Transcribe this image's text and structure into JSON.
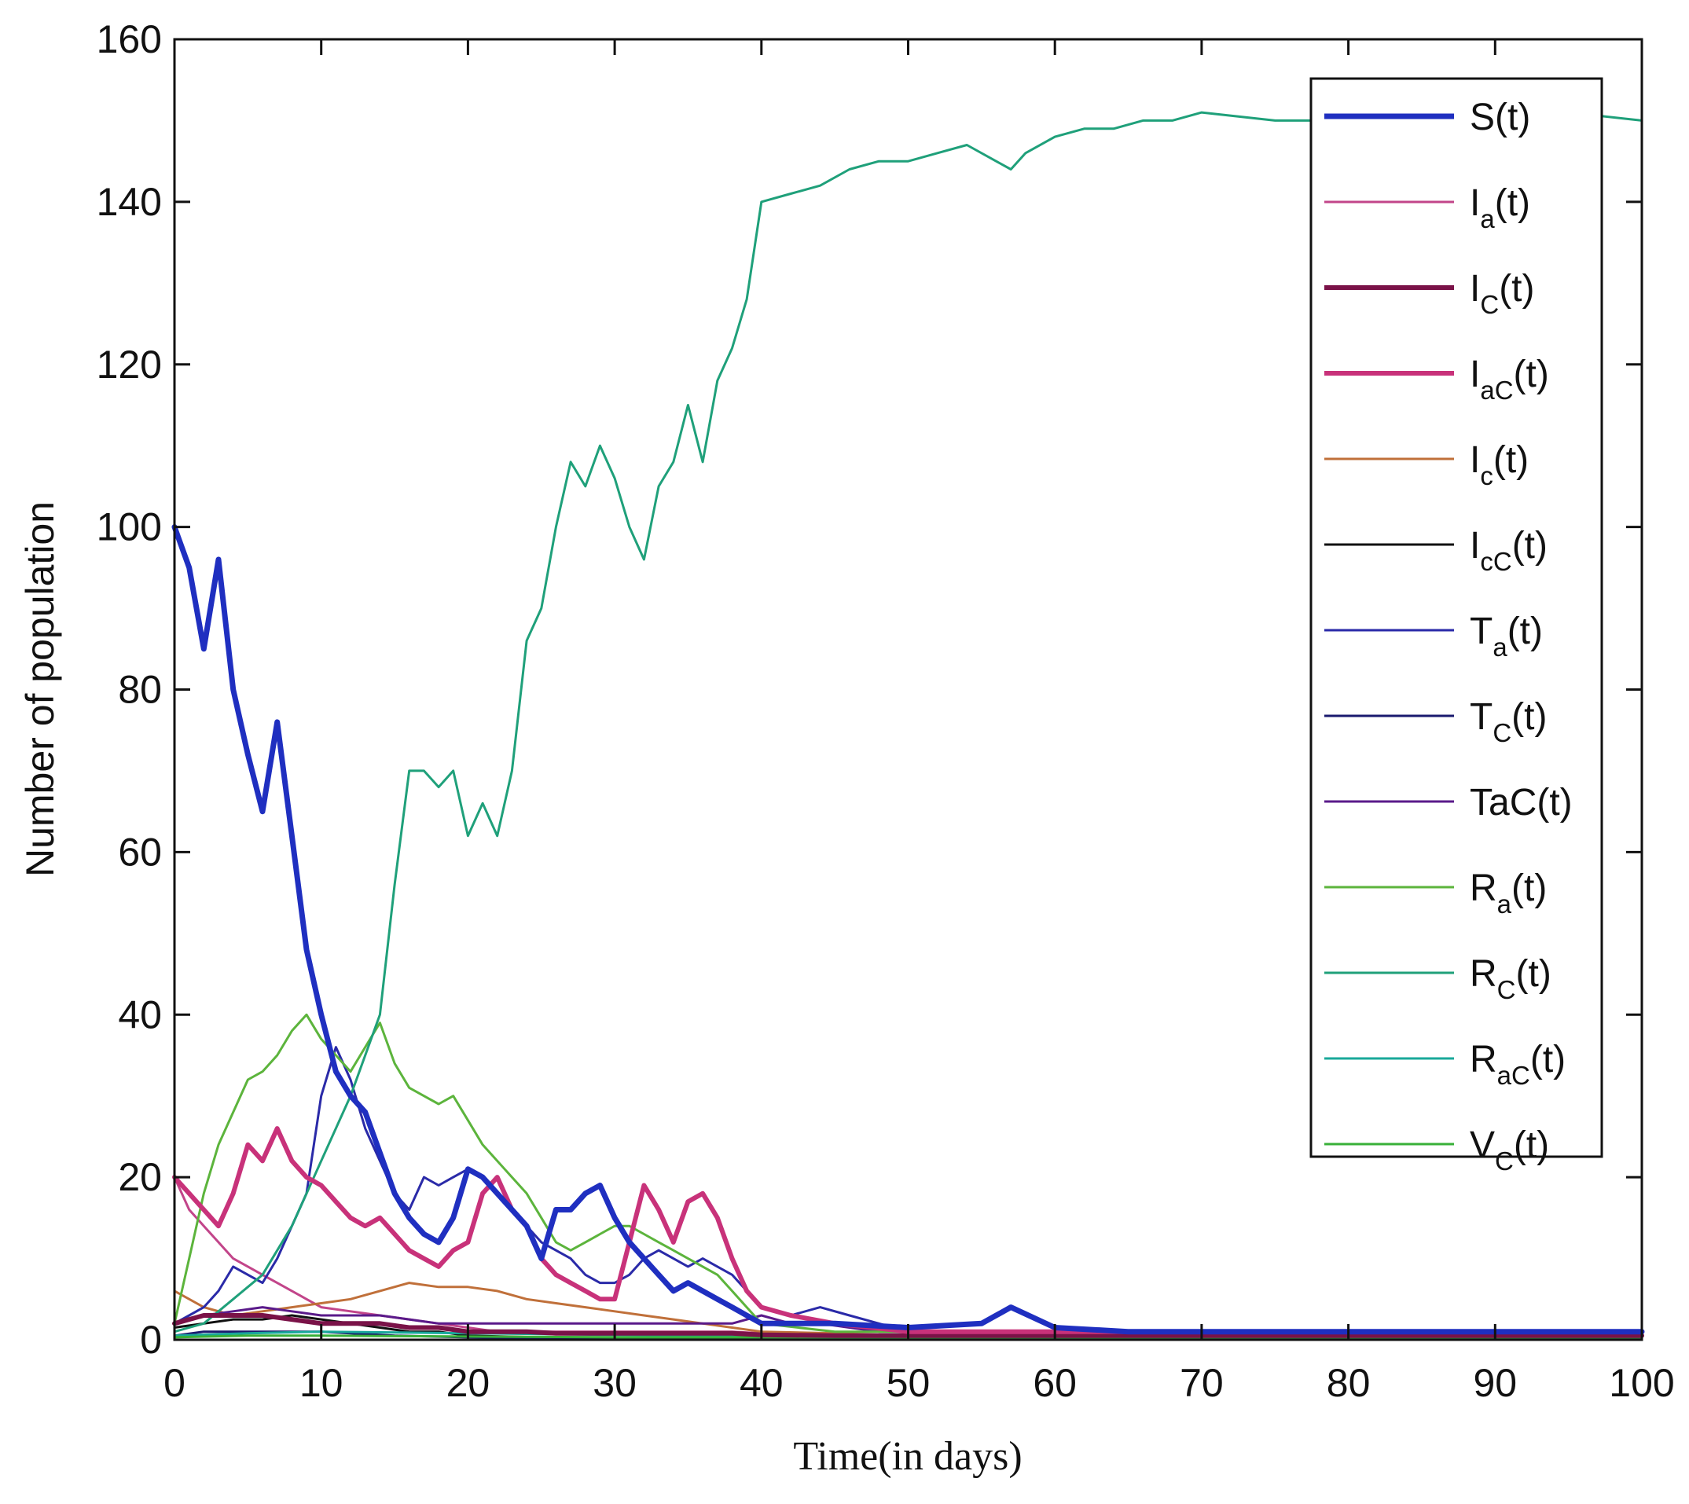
{
  "chart_data": {
    "type": "line",
    "title": "",
    "xlabel": "Time(in days)",
    "ylabel": "Number of population",
    "xlim": [
      0,
      100
    ],
    "ylim": [
      0,
      160
    ],
    "xticks": [
      0,
      10,
      20,
      30,
      40,
      50,
      60,
      70,
      80,
      90,
      100
    ],
    "yticks": [
      0,
      20,
      40,
      60,
      80,
      100,
      120,
      140,
      160
    ],
    "legend_position": "top-right",
    "grid": false,
    "series": [
      {
        "name": "S(t)",
        "label_main": "S(t)",
        "label_sub": "",
        "label_tail": "",
        "color": "#1f2fc0",
        "width": 7,
        "x": [
          0,
          1,
          2,
          3,
          4,
          5,
          6,
          7,
          8,
          9,
          10,
          11,
          12,
          13,
          14,
          15,
          16,
          17,
          18,
          19,
          20,
          21,
          22,
          23,
          24,
          25,
          26,
          27,
          28,
          29,
          30,
          31,
          32,
          33,
          34,
          35,
          36,
          37,
          38,
          39,
          40,
          45,
          50,
          55,
          57,
          60,
          65,
          70,
          80,
          90,
          100
        ],
        "y": [
          100,
          95,
          85,
          96,
          80,
          72,
          65,
          76,
          62,
          48,
          40,
          33,
          30,
          28,
          23,
          18,
          15,
          13,
          12,
          15,
          21,
          20,
          18,
          16,
          14,
          10,
          16,
          16,
          18,
          19,
          15,
          12,
          10,
          8,
          6,
          7,
          6,
          5,
          4,
          3,
          2,
          2,
          1.5,
          2,
          4,
          1.5,
          1,
          1,
          1,
          1,
          1
        ]
      },
      {
        "name": "Ia(t)",
        "label_main": "I",
        "label_sub": "a",
        "label_tail": "(t)",
        "color": "#c2458a",
        "width": 3,
        "x": [
          0,
          1,
          2,
          3,
          4,
          5,
          6,
          7,
          8,
          9,
          10,
          12,
          14,
          16,
          18,
          20,
          22,
          24,
          26,
          28,
          30,
          32,
          34,
          36,
          38,
          40,
          45,
          50,
          60,
          70,
          80,
          90,
          100
        ],
        "y": [
          20,
          16,
          14,
          12,
          10,
          9,
          8,
          7,
          6,
          5,
          4,
          3.5,
          3,
          2.5,
          2,
          1.5,
          1,
          1,
          1,
          1,
          1,
          1,
          1,
          1,
          1,
          0.8,
          0.5,
          0.5,
          0.5,
          0.5,
          0.5,
          0.5,
          0.5
        ]
      },
      {
        "name": "IC(t)",
        "label_main": "I",
        "label_sub": "C",
        "label_tail": "(t)",
        "color": "#7a1248",
        "width": 6,
        "x": [
          0,
          2,
          4,
          6,
          8,
          10,
          12,
          14,
          16,
          18,
          20,
          22,
          24,
          26,
          28,
          30,
          32,
          34,
          36,
          38,
          40,
          45,
          50,
          60,
          70,
          80,
          90,
          100
        ],
        "y": [
          2,
          3,
          3,
          3,
          2.5,
          2,
          2,
          2,
          1.5,
          1.5,
          1,
          1,
          1,
          0.8,
          0.8,
          0.8,
          0.8,
          0.8,
          0.8,
          0.8,
          0.6,
          0.5,
          0.5,
          0.5,
          0.5,
          0.5,
          0.5,
          0.5
        ]
      },
      {
        "name": "IaC(t)",
        "label_main": "I",
        "label_sub": "aC",
        "label_tail": "(t)",
        "color": "#c8327a",
        "width": 6,
        "x": [
          0,
          1,
          2,
          3,
          4,
          5,
          6,
          7,
          8,
          9,
          10,
          11,
          12,
          13,
          14,
          15,
          16,
          17,
          18,
          19,
          20,
          21,
          22,
          23,
          24,
          25,
          26,
          27,
          28,
          29,
          30,
          31,
          32,
          33,
          34,
          35,
          36,
          37,
          38,
          39,
          40,
          42,
          45,
          50,
          60,
          70,
          80,
          90,
          100
        ],
        "y": [
          20,
          18,
          16,
          14,
          18,
          24,
          22,
          26,
          22,
          20,
          19,
          17,
          15,
          14,
          15,
          13,
          11,
          10,
          9,
          11,
          12,
          18,
          20,
          16,
          14,
          10,
          8,
          7,
          6,
          5,
          5,
          12,
          19,
          16,
          12,
          17,
          18,
          15,
          10,
          6,
          4,
          3,
          2,
          1,
          1,
          1,
          1,
          1,
          1
        ]
      },
      {
        "name": "Ic(t)",
        "label_main": "I",
        "label_sub": "c",
        "label_tail": "(t)",
        "color": "#c0703a",
        "width": 3,
        "x": [
          0,
          2,
          4,
          6,
          8,
          10,
          12,
          14,
          16,
          18,
          20,
          22,
          24,
          26,
          28,
          30,
          32,
          34,
          36,
          38,
          40,
          45,
          50,
          60,
          70,
          80,
          90,
          100
        ],
        "y": [
          6,
          4,
          3,
          3.5,
          4,
          4.5,
          5,
          6,
          7,
          6.5,
          6.5,
          6,
          5,
          4.5,
          4,
          3.5,
          3,
          2.5,
          2,
          1.5,
          1,
          0.8,
          0.5,
          0.5,
          0.5,
          0.5,
          0.5,
          0.5
        ]
      },
      {
        "name": "IcC(t)",
        "label_main": "I",
        "label_sub": "cC",
        "label_tail": "(t)",
        "color": "#111111",
        "width": 3,
        "x": [
          0,
          2,
          4,
          6,
          8,
          10,
          12,
          14,
          16,
          18,
          20,
          25,
          30,
          40,
          50,
          60,
          70,
          80,
          90,
          100
        ],
        "y": [
          1.5,
          2,
          2.5,
          2.5,
          3,
          2.5,
          2,
          1.5,
          1,
          1,
          0.5,
          0.3,
          0.3,
          0.3,
          0.3,
          0.3,
          0.3,
          0.3,
          0.3,
          0.3
        ]
      },
      {
        "name": "Ta(t)",
        "label_main": "T",
        "label_sub": "a",
        "label_tail": "(t)",
        "color": "#2a2aa8",
        "width": 3,
        "x": [
          0,
          1,
          2,
          3,
          4,
          5,
          6,
          7,
          8,
          9,
          10,
          11,
          12,
          13,
          14,
          15,
          16,
          17,
          18,
          19,
          20,
          21,
          22,
          23,
          24,
          25,
          26,
          27,
          28,
          29,
          30,
          31,
          32,
          33,
          34,
          35,
          36,
          37,
          38,
          39,
          40,
          42,
          44,
          46,
          48,
          50,
          60,
          70,
          80,
          90,
          100
        ],
        "y": [
          2,
          3,
          4,
          6,
          9,
          8,
          7,
          10,
          14,
          18,
          30,
          36,
          32,
          26,
          22,
          18,
          16,
          20,
          19,
          20,
          21,
          20,
          18,
          16,
          14,
          12,
          11,
          10,
          8,
          7,
          7,
          8,
          10,
          11,
          10,
          9,
          10,
          9,
          8,
          6,
          4,
          3,
          4,
          3,
          2,
          1,
          1,
          0.5,
          0.5,
          0.5,
          0.5
        ]
      },
      {
        "name": "TC(t)",
        "label_main": "T",
        "label_sub": "C",
        "label_tail": "(t)",
        "color": "#1a1a6e",
        "width": 3,
        "x": [
          0,
          2,
          4,
          6,
          8,
          10,
          15,
          20,
          30,
          40,
          50,
          60,
          70,
          80,
          90,
          100
        ],
        "y": [
          0.5,
          1,
          1,
          1,
          1,
          1,
          0.5,
          0.3,
          0.2,
          0.2,
          0.2,
          0.2,
          0.2,
          0.2,
          0.2,
          0.2
        ]
      },
      {
        "name": "TaC(t)",
        "label_main": "TaC(t)",
        "label_sub": "",
        "label_tail": "",
        "color": "#5a1a8a",
        "width": 3,
        "x": [
          0,
          2,
          4,
          6,
          8,
          10,
          12,
          14,
          16,
          18,
          20,
          22,
          24,
          26,
          28,
          30,
          32,
          34,
          36,
          38,
          40,
          42,
          44,
          46,
          48,
          50,
          60,
          70,
          80,
          90,
          100
        ],
        "y": [
          2,
          3,
          3.5,
          4,
          3.5,
          3,
          3,
          3,
          2.5,
          2,
          2,
          2,
          2,
          2,
          2,
          2,
          2,
          2,
          2,
          2,
          3,
          2,
          2,
          1.5,
          1,
          1,
          1,
          0.8,
          0.8,
          0.8,
          0.8
        ]
      },
      {
        "name": "Ra(t)",
        "label_main": "R",
        "label_sub": "a",
        "label_tail": "(t)",
        "color": "#5cb43c",
        "width": 3,
        "x": [
          0,
          1,
          2,
          3,
          4,
          5,
          6,
          7,
          8,
          9,
          10,
          11,
          12,
          13,
          14,
          15,
          16,
          17,
          18,
          19,
          20,
          21,
          22,
          23,
          24,
          25,
          26,
          27,
          28,
          29,
          30,
          31,
          32,
          33,
          34,
          35,
          36,
          37,
          38,
          39,
          40,
          45,
          50,
          60,
          70,
          80,
          90,
          100
        ],
        "y": [
          2,
          10,
          18,
          24,
          28,
          32,
          33,
          35,
          38,
          40,
          37,
          35,
          33,
          36,
          39,
          34,
          31,
          30,
          29,
          30,
          27,
          24,
          22,
          20,
          18,
          15,
          12,
          11,
          12,
          13,
          14,
          14,
          13,
          12,
          11,
          10,
          9,
          8,
          6,
          4,
          2,
          1,
          1,
          0.5,
          0.5,
          0.5,
          0.5,
          0.5
        ]
      },
      {
        "name": "RC(t)",
        "label_main": "R",
        "label_sub": "C",
        "label_tail": "(t)",
        "color": "#1fa07a",
        "width": 3,
        "x": [
          0,
          2,
          4,
          6,
          8,
          10,
          12,
          14,
          15,
          16,
          17,
          18,
          19,
          20,
          21,
          22,
          23,
          24,
          25,
          26,
          27,
          28,
          29,
          30,
          31,
          32,
          33,
          34,
          35,
          36,
          37,
          38,
          39,
          40,
          42,
          44,
          46,
          48,
          50,
          52,
          54,
          56,
          57,
          58,
          60,
          62,
          64,
          66,
          68,
          70,
          75,
          80,
          85,
          90,
          95,
          100
        ],
        "y": [
          1,
          2,
          5,
          8,
          14,
          22,
          30,
          40,
          56,
          70,
          70,
          68,
          70,
          62,
          66,
          62,
          70,
          86,
          90,
          100,
          108,
          105,
          110,
          106,
          100,
          96,
          105,
          108,
          115,
          108,
          118,
          122,
          128,
          140,
          141,
          142,
          144,
          145,
          145,
          146,
          147,
          145,
          144,
          146,
          148,
          149,
          149,
          150,
          150,
          151,
          150,
          150,
          151,
          151,
          151,
          150
        ]
      },
      {
        "name": "RaC(t)",
        "label_main": "R",
        "label_sub": "aC",
        "label_tail": "(t)",
        "color": "#19a89a",
        "width": 3,
        "x": [
          0,
          5,
          10,
          20,
          30,
          40,
          50,
          60,
          70,
          80,
          90,
          100
        ],
        "y": [
          0.5,
          0.8,
          1,
          0.8,
          0.6,
          0.5,
          0.5,
          0.5,
          0.5,
          0.5,
          0.5,
          0.5
        ]
      },
      {
        "name": "VC(t)",
        "label_main": "V",
        "label_sub": "C",
        "label_tail": "(t)",
        "color": "#38b038",
        "width": 3,
        "x": [
          0,
          5,
          10,
          20,
          30,
          40,
          50,
          60,
          70,
          80,
          90,
          100
        ],
        "y": [
          0.3,
          0.5,
          0.5,
          0.4,
          0.3,
          0.3,
          0.3,
          0.3,
          0.3,
          0.3,
          0.3,
          0.3
        ]
      }
    ]
  }
}
